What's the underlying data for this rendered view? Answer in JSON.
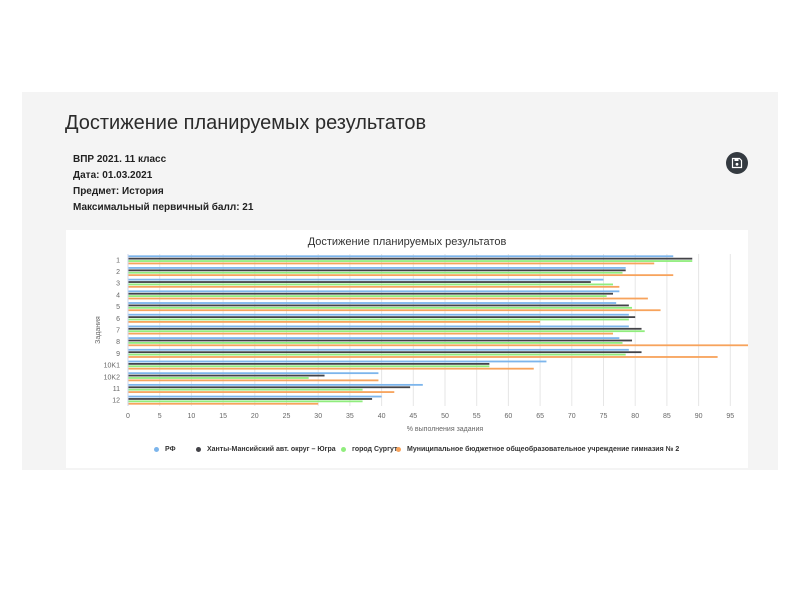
{
  "page": {
    "title": "Достижение планируемых результатов",
    "meta": [
      "ВПР 2021. 11 класс",
      "Дата: 01.03.2021",
      "Предмет: История",
      "Максимальный первичный балл: 21"
    ],
    "save_icon": "floppy-disk-icon"
  },
  "chart_data": {
    "type": "bar",
    "orientation": "horizontal",
    "title": "Достижение планируемых результатов",
    "xlabel": "% выполнения задания",
    "ylabel": "Задания",
    "xlim": [
      0,
      100
    ],
    "xticks": [
      0,
      5,
      10,
      15,
      20,
      25,
      30,
      35,
      40,
      45,
      50,
      55,
      60,
      65,
      70,
      75,
      80,
      85,
      90,
      95,
      100
    ],
    "grid": true,
    "legend_position": "bottom",
    "categories": [
      "1",
      "2",
      "3",
      "4",
      "5",
      "6",
      "7",
      "8",
      "9",
      "10K1",
      "10K2",
      "11",
      "12"
    ],
    "series": [
      {
        "name": "РФ",
        "color": "#7cb5ec",
        "values": [
          86,
          78.5,
          75,
          77.5,
          77,
          79,
          79,
          77.5,
          79,
          66,
          39.5,
          46.5,
          40
        ]
      },
      {
        "name": "Ханты-Мансийский авт. округ – Югра",
        "color": "#434348",
        "values": [
          89,
          78.5,
          73,
          76.5,
          79,
          80,
          81,
          79.5,
          81,
          57,
          31,
          44.5,
          38.5
        ]
      },
      {
        "name": "город Сургут",
        "color": "#90ed7d",
        "values": [
          89,
          78,
          76.5,
          75.5,
          79.5,
          79,
          81.5,
          78,
          78.5,
          57,
          28.5,
          37,
          37
        ]
      },
      {
        "name": "Муниципальное бюджетное общеобразовательное учреждение гимназия № 2",
        "color": "#f7a35c",
        "values": [
          83,
          86,
          77.5,
          82,
          84,
          65,
          76.5,
          99,
          93,
          64,
          39.5,
          42,
          30
        ]
      }
    ]
  }
}
